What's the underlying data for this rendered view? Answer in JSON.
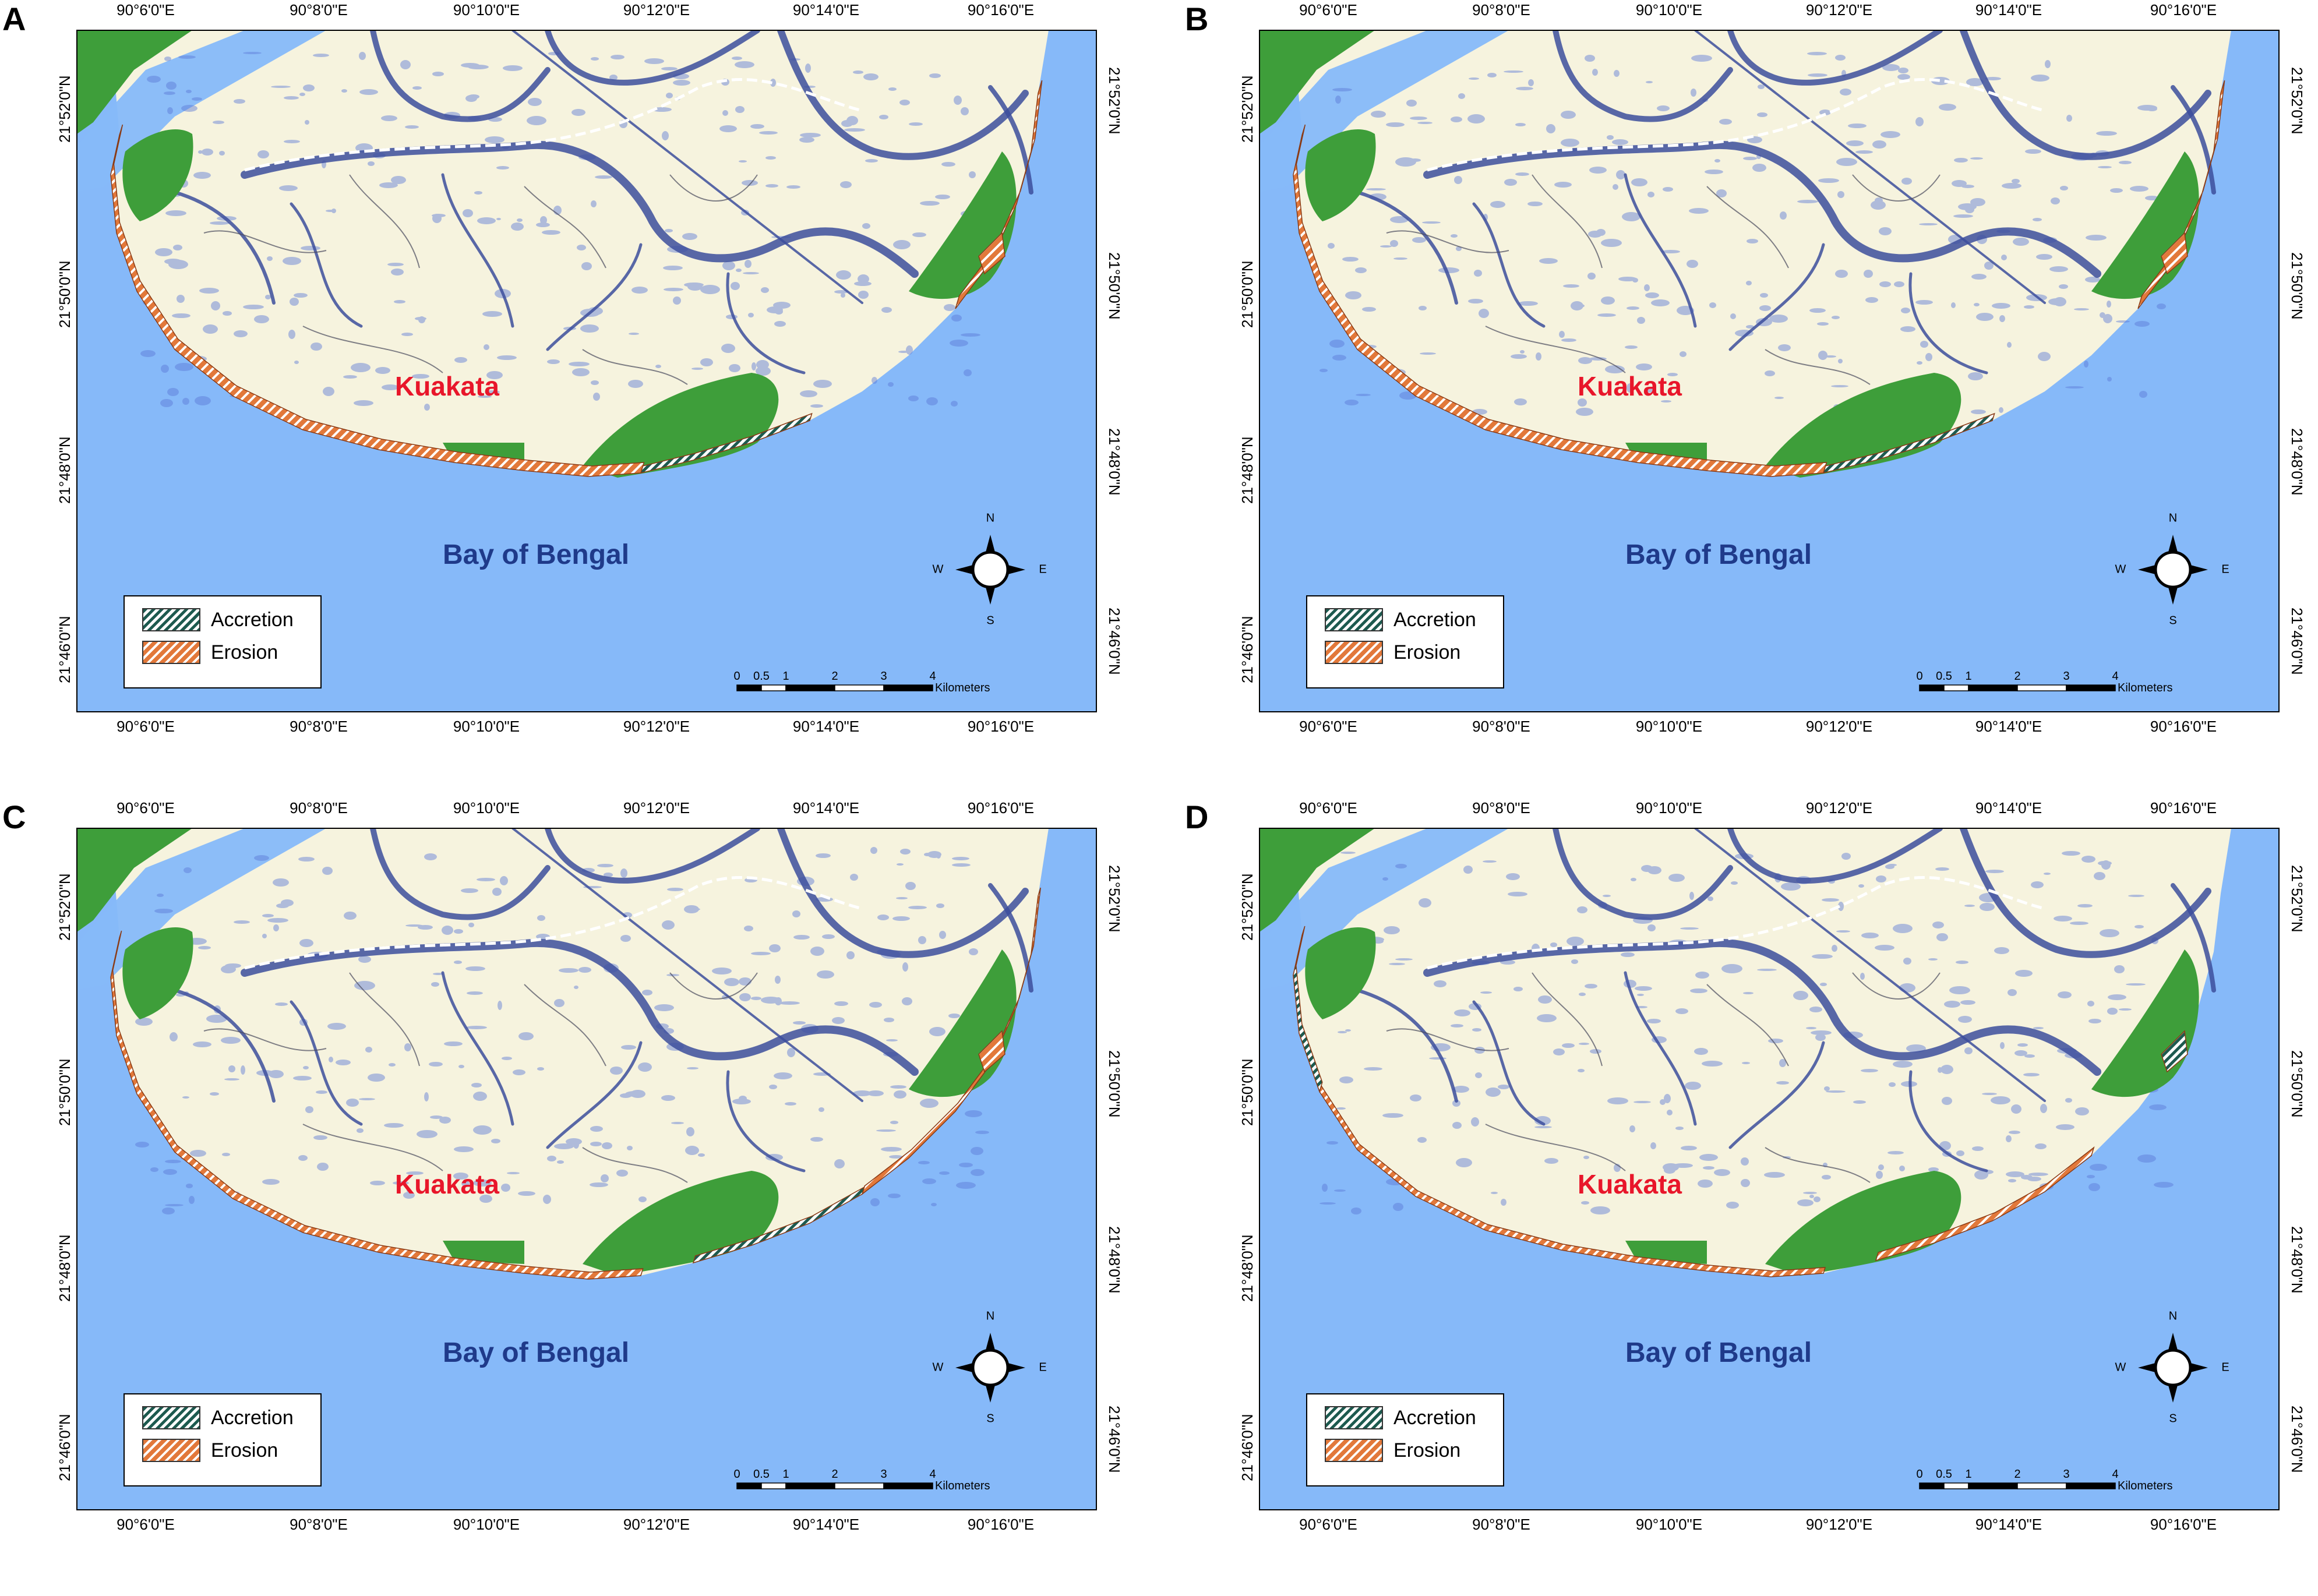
{
  "figure": {
    "panels": [
      {
        "letter": "A",
        "variant": 0
      },
      {
        "letter": "B",
        "variant": 1
      },
      {
        "letter": "C",
        "variant": 2
      },
      {
        "letter": "D",
        "variant": 3
      }
    ],
    "longitude_ticks": [
      "90°6'0\"E",
      "90°8'0\"E",
      "90°10'0\"E",
      "90°12'0\"E",
      "90°14'0\"E",
      "90°16'0\"E"
    ],
    "latitude_ticks": [
      "21°52'0\"N",
      "21°50'0\"N",
      "21°48'0\"N",
      "21°46'0\"N"
    ],
    "place_label": "Kuakata",
    "sea_label": "Bay of Bengal",
    "legend": {
      "accretion": "Accretion",
      "erosion": "Erosion"
    },
    "compass": {
      "n": "N",
      "s": "S",
      "e": "E",
      "w": "W"
    },
    "scale_bar": {
      "labels": [
        "0",
        "0.5",
        "1",
        "2",
        "3",
        "4"
      ],
      "unit": "Kilometers"
    },
    "colors": {
      "sea": "#86b9f9",
      "land": "#f6f3de",
      "vegetation": "#3e9e3a",
      "channel": "#3c4d9c",
      "erosion": "#e2783a",
      "accretion": "#1d5a4f"
    }
  }
}
